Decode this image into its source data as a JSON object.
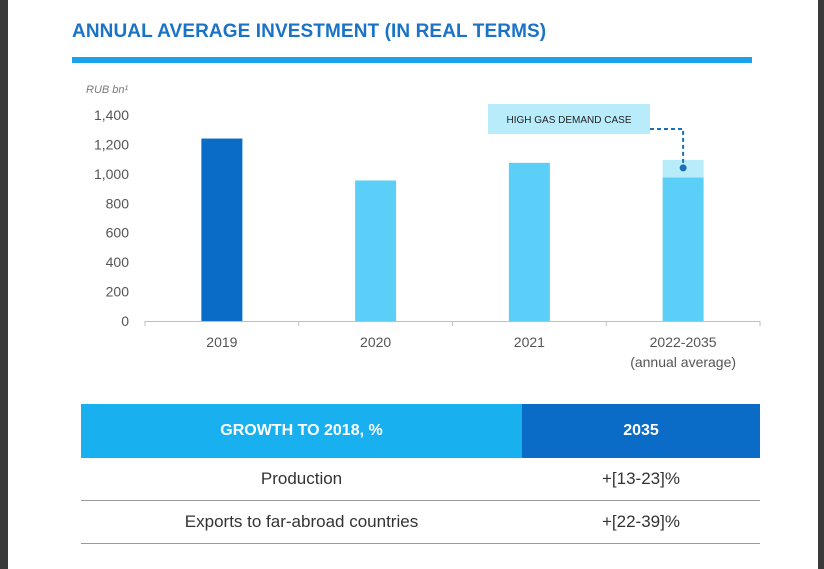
{
  "title": "ANNUAL AVERAGE INVESTMENT (IN REAL TERMS)",
  "chart_data": {
    "type": "bar",
    "ylabel": "RUB bn¹",
    "ylim": [
      0,
      1400
    ],
    "yticks": [
      "0",
      "200",
      "400",
      "600",
      "800",
      "1,000",
      "1,200",
      "1,400"
    ],
    "categories": [
      "2019",
      "2020",
      "2021",
      "2022-2035"
    ],
    "category_sublabels": [
      "",
      "",
      "",
      "(annual average)"
    ],
    "values": [
      1240,
      955,
      1075,
      975
    ],
    "high_case_values": [
      null,
      null,
      null,
      1095
    ],
    "annotation": "HIGH GAS DEMAND CASE",
    "grid": false,
    "colors": {
      "bar_2019": "#0a6cc7",
      "bar": "#5ccff9",
      "high_case": "#b8ecfb",
      "annotation_bg": "#b8ecfb",
      "connector": "#1a6fb5"
    }
  },
  "table": {
    "header": [
      "GROWTH TO 2018, %",
      "2035"
    ],
    "rows": [
      [
        "Production",
        "+[13-23]%"
      ],
      [
        "Exports to far-abroad countries",
        "+[22-39]%"
      ]
    ]
  }
}
